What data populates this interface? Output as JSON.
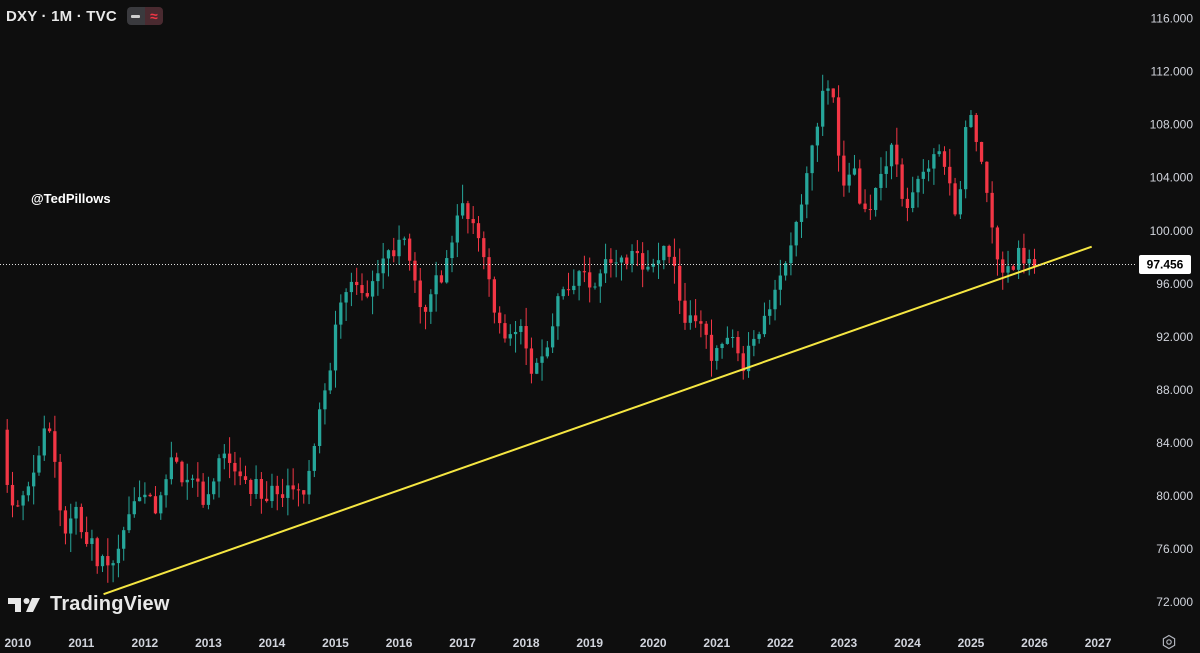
{
  "header": {
    "symbol": "DXY · 1M · TVC",
    "indicator_icons": [
      "minus-icon",
      "wave-icon"
    ]
  },
  "watermark": "@TedPillows",
  "branding": {
    "logo_icon": "tradingview-logo-icon",
    "name": "TradingView"
  },
  "current_price_label": "97.456",
  "colors": {
    "background": "#0e0e0e",
    "up": "#26a69a",
    "down": "#f23645",
    "trendline": "#f5e642",
    "text": "#d1d4dc",
    "price_line": "#e0e0e0"
  },
  "chart_data": {
    "type": "candlestick",
    "title": "",
    "xlabel": "",
    "ylabel": "",
    "x_ticks": [
      "2010",
      "2011",
      "2012",
      "2013",
      "2014",
      "2015",
      "2016",
      "2017",
      "2018",
      "2019",
      "2020",
      "2021",
      "2022",
      "2023",
      "2024",
      "2025",
      "2026",
      "2027"
    ],
    "y_ticks": [
      "116.000",
      "112.000",
      "108.000",
      "104.000",
      "100.000",
      "96.000",
      "92.000",
      "88.000",
      "84.000",
      "80.000",
      "76.000",
      "72.000"
    ],
    "xlim": [
      2009.72,
      2027.55
    ],
    "ylim": [
      70.5,
      117.4
    ],
    "current_price": 97.456,
    "series": [
      {
        "name": "",
        "anchors": [
          [
            2009.75,
            85.0
          ],
          [
            2009.9,
            78.5
          ],
          [
            2010.0,
            80.0
          ],
          [
            2010.3,
            82.0
          ],
          [
            2010.45,
            86.0
          ],
          [
            2010.55,
            83.5
          ],
          [
            2010.75,
            77.0
          ],
          [
            2010.85,
            79.5
          ],
          [
            2011.0,
            78.0
          ],
          [
            2011.3,
            75.0
          ],
          [
            2011.5,
            74.5
          ],
          [
            2011.75,
            79.0
          ],
          [
            2011.95,
            80.2
          ],
          [
            2012.2,
            78.9
          ],
          [
            2012.4,
            83.0
          ],
          [
            2012.6,
            81.5
          ],
          [
            2012.95,
            79.8
          ],
          [
            2013.2,
            83.0
          ],
          [
            2013.45,
            82.3
          ],
          [
            2013.6,
            81.0
          ],
          [
            2013.9,
            80.2
          ],
          [
            2014.2,
            80.0
          ],
          [
            2014.45,
            80.3
          ],
          [
            2014.6,
            82.0
          ],
          [
            2014.8,
            87.5
          ],
          [
            2014.95,
            90.3
          ],
          [
            2015.1,
            96.0
          ],
          [
            2015.3,
            95.5
          ],
          [
            2015.6,
            96.0
          ],
          [
            2015.9,
            98.7
          ],
          [
            2016.1,
            99.0
          ],
          [
            2016.35,
            94.0
          ],
          [
            2016.55,
            95.5
          ],
          [
            2016.8,
            98.5
          ],
          [
            2016.95,
            102.2
          ],
          [
            2017.15,
            100.5
          ],
          [
            2017.35,
            97.0
          ],
          [
            2017.55,
            93.0
          ],
          [
            2017.7,
            92.5
          ],
          [
            2017.95,
            92.0
          ],
          [
            2018.05,
            89.5
          ],
          [
            2018.2,
            90.0
          ],
          [
            2018.5,
            94.5
          ],
          [
            2018.85,
            97.0
          ],
          [
            2019.0,
            96.2
          ],
          [
            2019.3,
            97.5
          ],
          [
            2019.55,
            98.0
          ],
          [
            2019.75,
            98.2
          ],
          [
            2019.95,
            96.5
          ],
          [
            2020.15,
            99.0
          ],
          [
            2020.25,
            98.5
          ],
          [
            2020.5,
            93.5
          ],
          [
            2020.7,
            93.5
          ],
          [
            2020.95,
            90.0
          ],
          [
            2021.2,
            93.0
          ],
          [
            2021.4,
            90.0
          ],
          [
            2021.6,
            92.0
          ],
          [
            2021.95,
            95.5
          ],
          [
            2022.1,
            98.0
          ],
          [
            2022.35,
            103.0
          ],
          [
            2022.55,
            108.0
          ],
          [
            2022.75,
            111.5
          ],
          [
            2022.85,
            109.0
          ],
          [
            2022.95,
            103.5
          ],
          [
            2023.15,
            104.5
          ],
          [
            2023.3,
            101.7
          ],
          [
            2023.45,
            102.0
          ],
          [
            2023.75,
            106.5
          ],
          [
            2023.95,
            101.5
          ],
          [
            2024.2,
            104.5
          ],
          [
            2024.45,
            105.9
          ],
          [
            2024.65,
            103.5
          ],
          [
            2024.75,
            100.5
          ],
          [
            2024.95,
            108.5
          ],
          [
            2025.05,
            108.3
          ],
          [
            2025.2,
            104.0
          ],
          [
            2025.35,
            99.5
          ],
          [
            2025.45,
            97.0
          ],
          [
            2025.7,
            97.8
          ],
          [
            2025.85,
            98.3
          ],
          [
            2026.0,
            97.456
          ]
        ]
      },
      {
        "name": "",
        "points": [
          [
            2011.35,
            72.6
          ],
          [
            2026.9,
            98.8
          ]
        ]
      }
    ]
  }
}
